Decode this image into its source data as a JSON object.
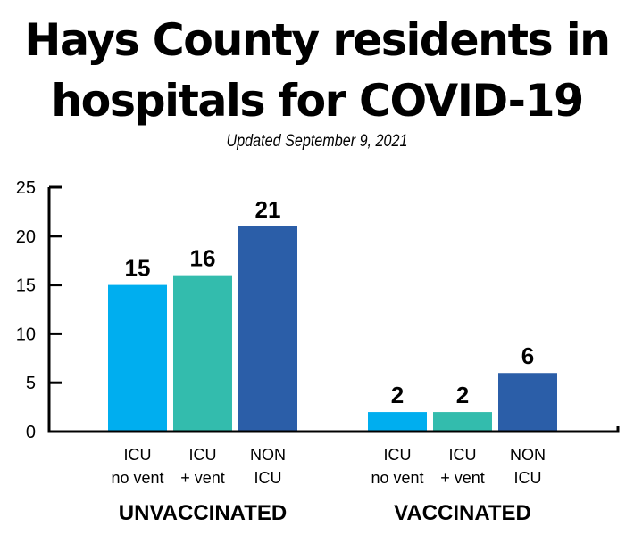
{
  "chart_data": {
    "type": "bar",
    "title": "Hays County residents in hospitals for COVID-19",
    "title_lines": [
      "Hays County residents in",
      "hospitals for COVID-19"
    ],
    "subtitle": "Updated September 9, 2021",
    "xlabel": "",
    "ylabel": "",
    "ylim": [
      0,
      25
    ],
    "yticks": [
      0,
      5,
      10,
      15,
      20,
      25
    ],
    "grid": false,
    "legend": "none",
    "groups": [
      {
        "name": "UNVACCINATED",
        "bars": [
          {
            "category": [
              "ICU",
              "no vent"
            ],
            "value": 15,
            "color": "#00aeef"
          },
          {
            "category": [
              "ICU",
              "+ vent"
            ],
            "value": 16,
            "color": "#33bcad"
          },
          {
            "category": [
              "NON",
              "ICU"
            ],
            "value": 21,
            "color": "#2b5ea8"
          }
        ]
      },
      {
        "name": "VACCINATED",
        "bars": [
          {
            "category": [
              "ICU",
              "no vent"
            ],
            "value": 2,
            "color": "#00aeef"
          },
          {
            "category": [
              "ICU",
              "+ vent"
            ],
            "value": 2,
            "color": "#33bcad"
          },
          {
            "category": [
              "NON",
              "ICU"
            ],
            "value": 6,
            "color": "#2b5ea8"
          }
        ]
      }
    ]
  }
}
